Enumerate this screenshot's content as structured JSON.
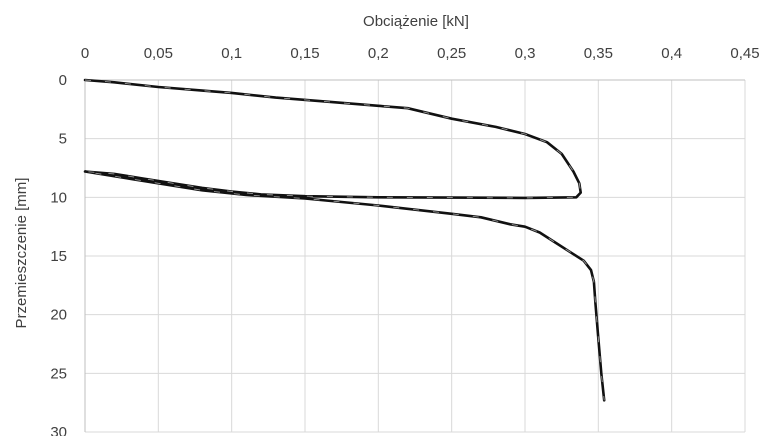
{
  "chart_data": {
    "type": "line",
    "xlabel": "Obciążenie [kN]",
    "ylabel": "Przemieszczenie [mm]",
    "xlim": [
      0,
      0.45
    ],
    "ylim": [
      0,
      30
    ],
    "y_inverted": true,
    "x_axis_position": "top",
    "grid": true,
    "x_ticks": [
      "0",
      "0,05",
      "0,1",
      "0,15",
      "0,2",
      "0,25",
      "0,3",
      "0,35",
      "0,4",
      "0,45"
    ],
    "y_ticks": [
      "0",
      "5",
      "10",
      "15",
      "20",
      "25",
      "30"
    ],
    "series": [
      {
        "points": [
          [
            0,
            0
          ],
          [
            0.02,
            0.2
          ],
          [
            0.05,
            0.6
          ],
          [
            0.08,
            0.9
          ],
          [
            0.1,
            1.1
          ],
          [
            0.13,
            1.5
          ],
          [
            0.16,
            1.8
          ],
          [
            0.2,
            2.2
          ],
          [
            0.22,
            2.4
          ],
          [
            0.23,
            2.7
          ],
          [
            0.25,
            3.3
          ],
          [
            0.28,
            4.0
          ],
          [
            0.3,
            4.6
          ],
          [
            0.315,
            5.3
          ],
          [
            0.325,
            6.3
          ],
          [
            0.333,
            7.8
          ],
          [
            0.337,
            8.8
          ],
          [
            0.338,
            9.6
          ],
          [
            0.335,
            10.0
          ],
          [
            0.3,
            10.05
          ],
          [
            0.25,
            10.02
          ],
          [
            0.2,
            10.0
          ],
          [
            0.15,
            9.9
          ],
          [
            0.12,
            9.75
          ],
          [
            0.1,
            9.5
          ],
          [
            0.08,
            9.2
          ],
          [
            0.06,
            8.8
          ],
          [
            0.04,
            8.4
          ],
          [
            0.02,
            8.0
          ],
          [
            0,
            7.8
          ],
          [
            0.02,
            8.2
          ],
          [
            0.05,
            8.8
          ],
          [
            0.08,
            9.4
          ],
          [
            0.11,
            9.8
          ],
          [
            0.15,
            10.1
          ],
          [
            0.2,
            10.7
          ],
          [
            0.25,
            11.4
          ],
          [
            0.27,
            11.7
          ],
          [
            0.28,
            12.0
          ],
          [
            0.29,
            12.3
          ],
          [
            0.3,
            12.5
          ],
          [
            0.31,
            13.0
          ],
          [
            0.32,
            13.8
          ],
          [
            0.33,
            14.6
          ],
          [
            0.34,
            15.4
          ],
          [
            0.345,
            16.2
          ],
          [
            0.347,
            17.2
          ],
          [
            0.348,
            19.0
          ],
          [
            0.35,
            22.0
          ],
          [
            0.352,
            25.0
          ],
          [
            0.354,
            27.3
          ]
        ]
      }
    ]
  }
}
